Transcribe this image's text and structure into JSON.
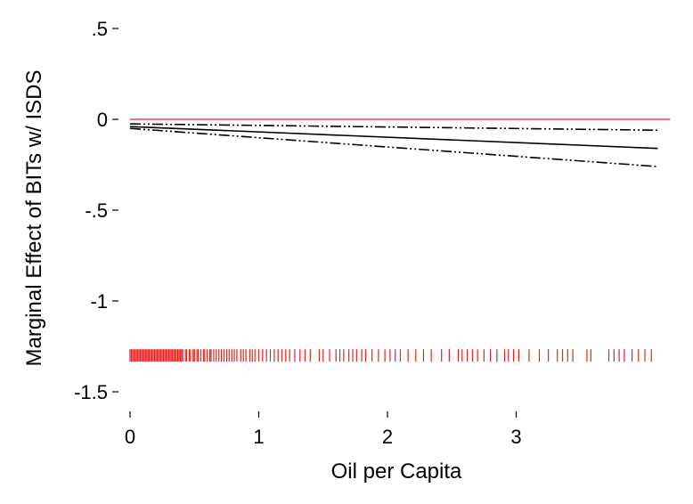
{
  "chart_data": {
    "type": "line",
    "title": "",
    "xlabel": "Oil per Capita",
    "ylabel": "Marginal Effect of BITs w/ ISDS",
    "xlim": [
      0,
      4.1
    ],
    "ylim": [
      -1.6,
      0.6
    ],
    "xticks": [
      0,
      1,
      2,
      3
    ],
    "xtick_labels": [
      "0",
      "1",
      "2",
      "3"
    ],
    "yticks": [
      0.5,
      0,
      -0.5,
      -1,
      -1.5
    ],
    "ytick_labels": [
      ".5",
      "0",
      "-.5",
      "-1",
      "-1.5"
    ],
    "grid": false,
    "legend": "none",
    "reference_line": {
      "y": 0,
      "color": "#e8211c"
    },
    "series": [
      {
        "role": "estimate",
        "style": "solid",
        "color": "#000000",
        "x": [
          0,
          4.1
        ],
        "y": [
          -0.04,
          -0.16
        ]
      },
      {
        "role": "upper-ci",
        "style": "dash-dot-dot",
        "color": "#000000",
        "x": [
          0,
          4.1
        ],
        "y": [
          -0.025,
          -0.06
        ]
      },
      {
        "role": "lower-ci",
        "style": "dash-dot-dot",
        "color": "#000000",
        "x": [
          0,
          4.1
        ],
        "y": [
          -0.05,
          -0.26
        ]
      }
    ],
    "rug": {
      "y": -1.3,
      "color": "#e8211c",
      "x": [
        0.0,
        0.01,
        0.02,
        0.03,
        0.04,
        0.05,
        0.06,
        0.07,
        0.08,
        0.09,
        0.1,
        0.11,
        0.12,
        0.13,
        0.14,
        0.15,
        0.16,
        0.17,
        0.18,
        0.19,
        0.2,
        0.21,
        0.22,
        0.23,
        0.24,
        0.25,
        0.26,
        0.27,
        0.28,
        0.29,
        0.3,
        0.31,
        0.32,
        0.33,
        0.34,
        0.35,
        0.36,
        0.37,
        0.38,
        0.39,
        0.4,
        0.41,
        0.43,
        0.44,
        0.46,
        0.47,
        0.49,
        0.5,
        0.52,
        0.53,
        0.55,
        0.57,
        0.58,
        0.6,
        0.62,
        0.63,
        0.65,
        0.67,
        0.69,
        0.71,
        0.73,
        0.75,
        0.77,
        0.79,
        0.81,
        0.83,
        0.86,
        0.88,
        0.9,
        0.93,
        0.95,
        0.97,
        1.0,
        1.03,
        1.06,
        1.09,
        1.12,
        1.15,
        1.18,
        1.21,
        1.24,
        1.28,
        1.32,
        1.36,
        1.4,
        1.47,
        1.5,
        1.55,
        1.6,
        1.63,
        1.66,
        1.7,
        1.73,
        1.76,
        1.8,
        1.83,
        1.88,
        1.93,
        1.98,
        2.02,
        2.06,
        2.1,
        2.16,
        2.22,
        2.28,
        2.34,
        2.42,
        2.48,
        2.55,
        2.58,
        2.62,
        2.66,
        2.7,
        2.75,
        2.8,
        2.85,
        2.91,
        2.94,
        2.98,
        3.02,
        3.1,
        3.18,
        3.25,
        3.32,
        3.36,
        3.4,
        3.44,
        3.55,
        3.58,
        3.72,
        3.76,
        3.8,
        3.84,
        3.9,
        3.95,
        4.0,
        4.05
      ]
    }
  }
}
